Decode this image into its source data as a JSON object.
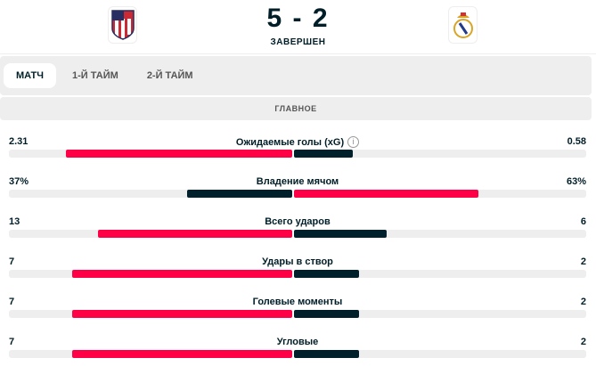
{
  "match": {
    "home_score": "5",
    "away_score": "2",
    "score_text": "5 - 2",
    "status": "ЗАВЕРШЕН",
    "home_team_logo": "atletico-crest-icon",
    "away_team_logo": "real-madrid-crest-icon"
  },
  "tabs": [
    {
      "label": "МАТЧ",
      "active": true
    },
    {
      "label": "1-Й ТАЙМ",
      "active": false
    },
    {
      "label": "2-Й ТАЙМ",
      "active": false
    }
  ],
  "section_title": "ГЛАВНОЕ",
  "colors": {
    "leader": "#ff0046",
    "trailer": "#00202c"
  },
  "stats": [
    {
      "label": "Ожидаемые голы (xG)",
      "home": "2.31",
      "away": "0.58",
      "home_value": 2.31,
      "away_value": 0.58,
      "info": true
    },
    {
      "label": "Владение мячом",
      "home": "37%",
      "away": "63%",
      "home_value": 37,
      "away_value": 63
    },
    {
      "label": "Всего ударов",
      "home": "13",
      "away": "6",
      "home_value": 13,
      "away_value": 6
    },
    {
      "label": "Удары в створ",
      "home": "7",
      "away": "2",
      "home_value": 7,
      "away_value": 2
    },
    {
      "label": "Голевые моменты",
      "home": "7",
      "away": "2",
      "home_value": 7,
      "away_value": 2
    },
    {
      "label": "Угловые",
      "home": "7",
      "away": "2",
      "home_value": 7,
      "away_value": 2
    }
  ]
}
